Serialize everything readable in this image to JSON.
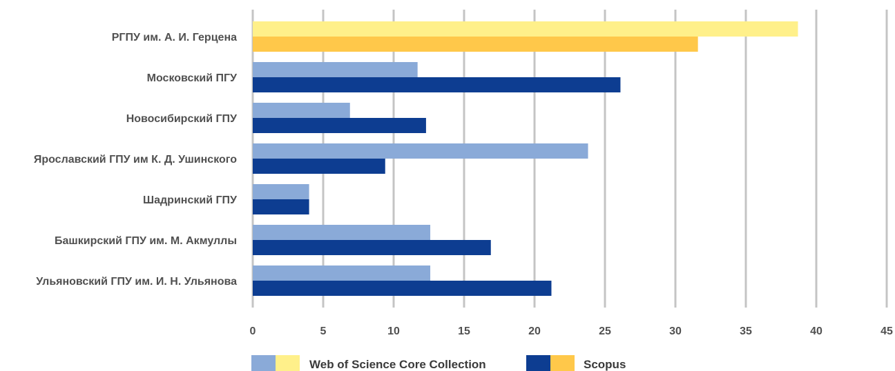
{
  "chart_data": {
    "type": "bar",
    "orientation": "horizontal",
    "title": "",
    "xlabel": "",
    "ylabel": "",
    "xlim": [
      0,
      45
    ],
    "ticks": [
      0,
      5,
      10,
      15,
      20,
      25,
      30,
      35,
      40,
      45
    ],
    "grid": true,
    "legend_position": "bottom",
    "categories": [
      "РГПУ им. А. И. Герцена",
      "Московский ПГУ",
      "Новосибирский ГПУ",
      "Ярославский ГПУ им К. Д. Ушинского",
      "Шадринский ГПУ",
      "Башкирский ГПУ им. М. Акмуллы",
      "Ульяновский ГПУ им. И. Н. Ульянова"
    ],
    "series": [
      {
        "name": "Web of Science Core Collection",
        "values": [
          38.7,
          11.7,
          6.9,
          23.8,
          4,
          12.6,
          12.6
        ],
        "color": "#8aaad8",
        "highlight_color": "#fff08a",
        "legend_colors": [
          "#8aaad8",
          "#fff08a"
        ]
      },
      {
        "name": "Scopus",
        "values": [
          31.6,
          26.1,
          12.3,
          9.4,
          4,
          16.9,
          21.2
        ],
        "color": "#0d3d91",
        "highlight_color": "#ffc84a",
        "legend_colors": [
          "#0d3d91",
          "#ffc84a"
        ]
      }
    ],
    "highlight_category_index": 0
  }
}
